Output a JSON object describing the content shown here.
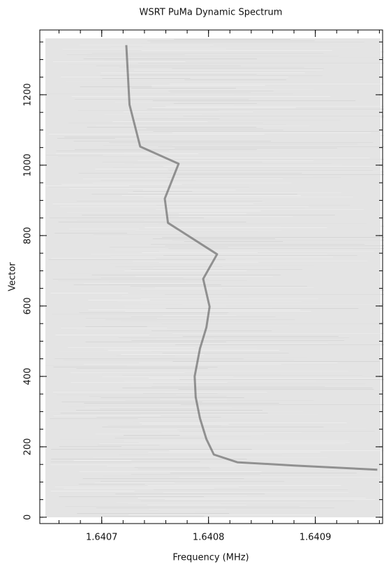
{
  "chart_data": {
    "type": "line",
    "title": "WSRT PuMa  Dynamic Spectrum",
    "x_label": "Frequency (MHz)",
    "y_label": "Vector",
    "xlim": [
      1.640642,
      1.640963
    ],
    "ylim": [
      -18,
      1384
    ],
    "xticks": [
      1.6407,
      1.6408,
      1.6409
    ],
    "yticks": [
      0,
      200,
      400,
      600,
      800,
      1000,
      1200
    ],
    "xminorticks": [
      1.64066,
      1.64068,
      1.6407,
      1.64072,
      1.64074,
      1.64076,
      1.64078,
      1.6408,
      1.64082,
      1.64084,
      1.64086,
      1.64088,
      1.6409,
      1.64092,
      1.64094,
      1.64096
    ],
    "yminorticks": [
      0,
      50,
      100,
      150,
      200,
      250,
      300,
      350,
      400,
      450,
      500,
      550,
      600,
      650,
      700,
      750,
      800,
      850,
      900,
      950,
      1000,
      1050,
      1100,
      1150,
      1200,
      1250,
      1300,
      1350
    ],
    "series": [
      {
        "color": "#4a4a4a",
        "x": [
          1.640958,
          1.64088,
          1.640827,
          1.640805,
          1.640798,
          1.640792,
          1.640788,
          1.640787,
          1.640792,
          1.640798,
          1.640801,
          1.640795,
          1.640808,
          1.640762,
          1.640759,
          1.640772,
          1.640736,
          1.640726,
          1.640723
        ],
        "values": [
          135,
          147,
          156,
          178,
          222,
          281,
          341,
          400,
          479,
          539,
          598,
          677,
          747,
          836,
          905,
          1004,
          1053,
          1172,
          1341
        ]
      }
    ]
  }
}
